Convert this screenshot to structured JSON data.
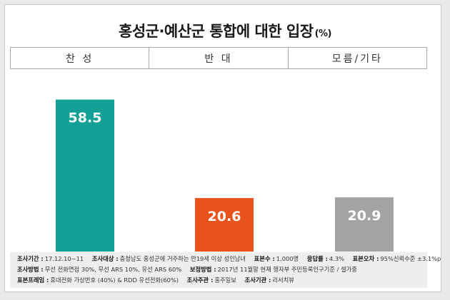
{
  "chart_data": {
    "type": "bar",
    "title": "홍성군·예산군 통합에 대한 입장",
    "unit": "(%)",
    "categories": [
      "찬 성",
      "반 대",
      "모름/기타"
    ],
    "values": [
      58.5,
      20.6,
      20.9
    ],
    "value_labels": [
      "58.5",
      "20.6",
      "20.9"
    ],
    "colors": [
      "#14a097",
      "#e8531c",
      "#a3a3a3"
    ],
    "ylim": [
      0,
      65
    ],
    "grid": false,
    "legend": "none"
  },
  "footer": {
    "line1": [
      {
        "label": "조사기간 :",
        "value": "17.12.10~11"
      },
      {
        "label": "조사대상 :",
        "value": "충청남도 홍성군에 거주하는 만19세 이상 성인남녀"
      },
      {
        "label": "표본수 :",
        "value": "1,000명"
      },
      {
        "label": "응답률 :",
        "value": "4.3%"
      },
      {
        "label": "표본오차 :",
        "value": "95%신뢰수준 ±3.1%p"
      }
    ],
    "line2": [
      {
        "label": "조사방법 :",
        "value": "무선 전화면접 30%, 무선 ARS 10%, 유선 ARS 60%"
      },
      {
        "label": "보정방법 :",
        "value": "2017년 11월말 현재 행자부 주민등록인구기준 / 셀가중"
      }
    ],
    "line3": [
      {
        "label": "표본프레임 :",
        "value": "휴대전화 가상번호 (40%) & RDD 유선전화(60%)"
      },
      {
        "label": "조사주관 :",
        "value": "홍주일보"
      },
      {
        "label": "조사기관 :",
        "value": "리서치뷰"
      }
    ]
  }
}
